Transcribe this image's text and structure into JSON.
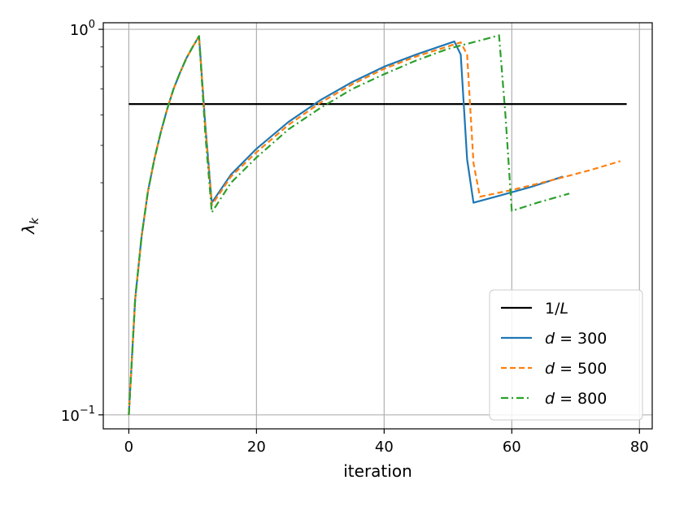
{
  "chart_data": {
    "type": "line",
    "xlabel": "iteration",
    "ylabel_symbol": "λ",
    "ylabel_sub": "k",
    "xlim": [
      -4,
      82
    ],
    "ylim": [
      0.092,
      1.04
    ],
    "yscale": "log",
    "grid": true,
    "legend_placement": "lower-right",
    "x_ticks": [
      0,
      20,
      40,
      60,
      80
    ],
    "x_tick_labels": [
      "0",
      "20",
      "40",
      "60",
      "80"
    ],
    "y_ticks": [
      0.1,
      1.0
    ],
    "y_tick_labels": [
      {
        "base": "10",
        "exp": "−1"
      },
      {
        "base": "10",
        "exp": "0"
      }
    ],
    "series": [
      {
        "name_prefix": "1/",
        "name_var": "L",
        "name_eq": "",
        "color": "#000000",
        "dash": "",
        "x": [
          0,
          78
        ],
        "y": [
          0.64,
          0.64
        ]
      },
      {
        "name_prefix": "",
        "name_var": "d",
        "name_eq": " = 300",
        "color": "#1f77b4",
        "dash": "",
        "x": [
          0,
          1,
          2,
          3,
          4,
          5,
          6,
          7,
          8,
          9,
          10,
          11,
          12,
          13,
          16,
          20,
          25,
          30,
          35,
          40,
          45,
          51,
          52,
          53,
          54,
          58,
          63,
          68
        ],
        "y": [
          0.1,
          0.2,
          0.29,
          0.38,
          0.46,
          0.54,
          0.62,
          0.7,
          0.77,
          0.84,
          0.9,
          0.96,
          0.56,
          0.355,
          0.42,
          0.49,
          0.575,
          0.655,
          0.73,
          0.8,
          0.86,
          0.93,
          0.86,
          0.46,
          0.355,
          0.37,
          0.39,
          0.415
        ]
      },
      {
        "name_prefix": "",
        "name_var": "d",
        "name_eq": " = 500",
        "color": "#ff7f0e",
        "dash": "7,4",
        "x": [
          0,
          1,
          2,
          3,
          4,
          5,
          6,
          7,
          8,
          9,
          10,
          11,
          12,
          13,
          16,
          20,
          25,
          30,
          35,
          40,
          45,
          52,
          53,
          54,
          55,
          60,
          66,
          72,
          77
        ],
        "y": [
          0.1,
          0.2,
          0.29,
          0.38,
          0.46,
          0.54,
          0.62,
          0.7,
          0.77,
          0.84,
          0.9,
          0.96,
          0.55,
          0.35,
          0.415,
          0.48,
          0.565,
          0.645,
          0.72,
          0.79,
          0.85,
          0.925,
          0.86,
          0.45,
          0.368,
          0.383,
          0.405,
          0.43,
          0.455
        ]
      },
      {
        "name_prefix": "",
        "name_var": "d",
        "name_eq": " = 800",
        "color": "#2ca02c",
        "dash": "9,4,2,4",
        "x": [
          0,
          1,
          2,
          3,
          4,
          5,
          6,
          7,
          8,
          9,
          10,
          11,
          12,
          13,
          16,
          20,
          25,
          30,
          35,
          40,
          45,
          50,
          55,
          58,
          59,
          60,
          64,
          69
        ],
        "y": [
          0.1,
          0.2,
          0.29,
          0.38,
          0.46,
          0.54,
          0.62,
          0.7,
          0.77,
          0.84,
          0.9,
          0.96,
          0.53,
          0.335,
          0.4,
          0.465,
          0.55,
          0.625,
          0.7,
          0.765,
          0.83,
          0.89,
          0.935,
          0.965,
          0.6,
          0.338,
          0.355,
          0.375
        ]
      }
    ]
  }
}
